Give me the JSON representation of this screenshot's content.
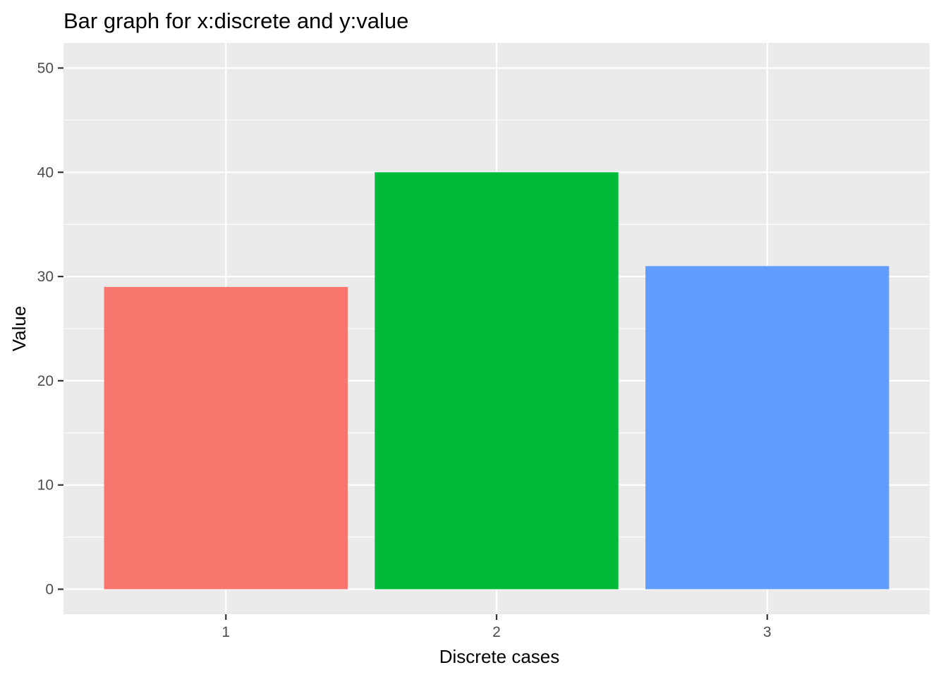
{
  "chart_data": {
    "type": "bar",
    "title": "Bar graph for x:discrete and y:value",
    "xlabel": "Discrete cases",
    "ylabel": "Value",
    "categories": [
      "1",
      "2",
      "3"
    ],
    "values": [
      29,
      40,
      31
    ],
    "ylim": [
      -2.4,
      52.4
    ],
    "yticks": [
      0,
      10,
      20,
      30,
      40,
      50
    ],
    "ytick_labels": [
      "0",
      "10",
      "20",
      "30",
      "40",
      "50"
    ],
    "grid": true,
    "legend": "none",
    "colors": [
      "#F8766D",
      "#00BA38",
      "#619CFF"
    ],
    "panel_background": "#EBEBEB",
    "grid_color": "#FFFFFF"
  }
}
